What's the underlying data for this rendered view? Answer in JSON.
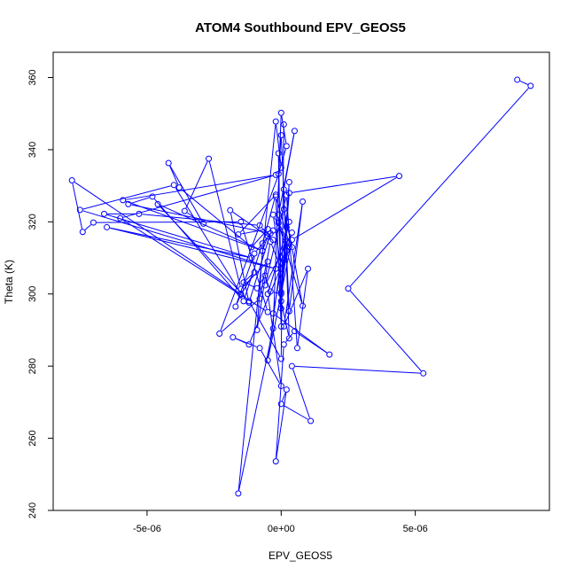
{
  "chart_data": {
    "type": "scatter",
    "title": "ATOM4 Southbound EPV_GEOS5",
    "xlabel": "EPV_GEOS5",
    "ylabel": "Theta (K)",
    "xlim": [
      -8.5e-06,
      1e-05
    ],
    "ylim": [
      240,
      367
    ],
    "x_ticks": [
      -5e-06,
      0,
      5e-06
    ],
    "x_tick_labels": [
      "-5e-06",
      "0e+00",
      "5e-06"
    ],
    "y_ticks": [
      240,
      260,
      280,
      300,
      320,
      340,
      360
    ],
    "y_tick_labels": [
      "240",
      "260",
      "280",
      "300",
      "320",
      "340",
      "360"
    ],
    "grid": false,
    "series": [
      {
        "color": "#0000ff",
        "style": "points-and-lines",
        "x": [
          8.8e-06,
          9.3e-06,
          2.5e-06,
          5.3e-06,
          4e-07,
          1.1e-06,
          0.0,
          2e-07,
          -2e-07,
          1e-07,
          5e-07,
          1.8e-06,
          -3e-07,
          0.0,
          -4e-07,
          -8e-07,
          -2.3e-06,
          0.0,
          -2e-07,
          -1.6e-06,
          -3e-07,
          0.0,
          2e-07,
          -1e-07,
          0.0,
          3e-07,
          8e-07,
          1e-07,
          1e-06,
          6e-07,
          2e-07,
          -6e-07,
          4e-07,
          0.0,
          -3e-07,
          3e-07,
          -1.2e-06,
          -1.8e-06,
          -8e-07,
          0.0,
          -5e-07,
          3e-07,
          0.0,
          -5e-07,
          4e-07,
          4.4e-06,
          3e-07,
          1e-07,
          0.0,
          3e-07,
          0.0,
          -1e-07,
          0.0,
          -2e-07,
          3e-07,
          -1e-07,
          2e-07,
          0.0,
          -1e-07,
          5e-07,
          1e-07,
          3e-07,
          0.0,
          2e-07,
          1e-07,
          4e-07,
          8e-07,
          2e-07,
          0.0,
          -4e-07,
          -6e-07,
          -9e-07,
          -1.4e-06,
          -1e-06,
          -1.5e-06,
          -1.7e-06,
          -1e-06,
          -3e-07,
          -5e-07,
          -7e-07,
          -9e-07,
          -5e-07,
          -1.5e-06,
          -2.7e-06,
          -3.6e-06,
          -2.9e-06,
          -4.2e-06,
          -3.8e-06,
          -1.1e-06,
          -5e-07,
          -1.6e-06,
          -2e-07,
          -7e-07,
          -1.4e-06,
          -4.8e-06,
          -5.7e-06,
          -4e-07,
          -1.2e-06,
          -1.9e-06,
          -3e-07,
          -8e-07,
          -5.3e-06,
          -6.6e-06,
          -1.1e-06,
          -6.5e-06,
          -2e-07,
          -7.5e-06,
          -4e-06,
          -1.5e-06,
          -7.8e-06,
          -7.4e-06,
          -7e-06,
          -1.5e-06,
          -5e-07,
          -6e-06,
          -2e-07,
          -5.9e-06,
          -7e-07,
          -4.6e-06,
          -1.2e-06,
          0.0,
          1e-07
        ],
        "y": [
          359.4,
          357.7,
          301.5,
          278.0,
          280.0,
          264.8,
          269.5,
          273.5,
          253.6,
          286.0,
          289.7,
          283.2,
          294.6,
          307.0,
          314.5,
          298.7,
          289.0,
          335.0,
          347.8,
          244.7,
          290.4,
          350.2,
          341.0,
          333.3,
          344.0,
          295.2,
          325.6,
          291.0,
          307.0,
          285.0,
          327.4,
          302.4,
          317.0,
          307.0,
          322.0,
          313.0,
          286.0,
          288.0,
          285.0,
          274.5,
          300.0,
          320.0,
          310.0,
          281.6,
          315.0,
          332.7,
          328.0,
          309.4,
          296.0,
          331.0,
          300.5,
          339.0,
          291.0,
          327.0,
          314.0,
          319.7,
          312.0,
          304.0,
          322.0,
          345.2,
          329.0,
          287.7,
          298.0,
          318.5,
          323.5,
          313.0,
          296.7,
          312.0,
          300.0,
          300.7,
          305.1,
          301.6,
          303.2,
          306.0,
          299.8,
          296.5,
          311.2,
          317.6,
          316.0,
          311.9,
          290.0,
          309.0,
          301.4,
          337.5,
          323.0,
          319.5,
          336.3,
          329.5,
          313.0,
          318.0,
          316.5,
          327.5,
          314.0,
          298.0,
          327.0,
          324.9,
          316.8,
          297.6,
          323.2,
          315.0,
          319.0,
          322.2,
          322.2,
          310.0,
          318.5,
          307.0,
          323.3,
          330.2,
          300.0,
          331.5,
          317.2,
          319.8,
          320.0,
          295.0,
          321.0,
          333.0,
          326.0,
          312.0,
          324.9,
          298.0,
          282.0,
          347.0
        ]
      }
    ]
  }
}
